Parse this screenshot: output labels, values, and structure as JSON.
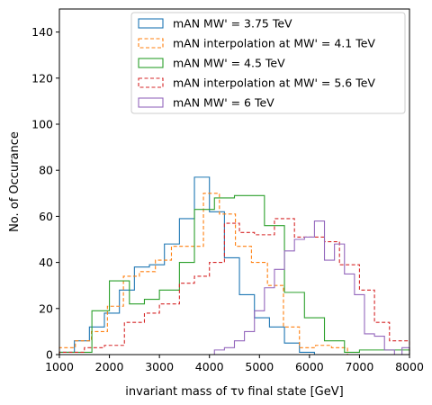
{
  "chart_data": {
    "type": "histogram-step",
    "xlabel": "invariant mass of τν final state [GeV]",
    "ylabel": "No. of Occurance",
    "xlim": [
      1000,
      8000
    ],
    "ylim": [
      0,
      150
    ],
    "xticks": [
      1000,
      2000,
      3000,
      4000,
      5000,
      6000,
      7000,
      8000
    ],
    "yticks": [
      0,
      20,
      40,
      60,
      80,
      100,
      120,
      140
    ],
    "grid": false,
    "legend_position": "top-right",
    "series": [
      {
        "name": "mAN MW' = 3.75 TeV",
        "color": "#1f77b4",
        "dashed": false,
        "edges": [
          1000,
          1300,
          1600,
          1900,
          2200,
          2500,
          2800,
          3100,
          3400,
          3700,
          4000,
          4300,
          4600,
          4900,
          5200,
          5500,
          5800,
          6100
        ],
        "counts": [
          1,
          6,
          12,
          18,
          28,
          38,
          39,
          48,
          59,
          77,
          62,
          42,
          26,
          16,
          12,
          5,
          1
        ]
      },
      {
        "name": "mAN interpolation at MW' = 4.1 TeV",
        "color": "#ff7f0e",
        "dashed": true,
        "edges": [
          1000,
          1320,
          1640,
          1960,
          2280,
          2600,
          2920,
          3240,
          3560,
          3880,
          4200,
          4520,
          4840,
          5160,
          5480,
          5800,
          6120,
          6440,
          6760
        ],
        "counts": [
          3,
          6,
          10,
          21,
          34,
          36,
          41,
          47,
          47,
          70,
          61,
          47,
          40,
          30,
          12,
          3,
          4,
          3
        ]
      },
      {
        "name": "mAN MW' = 4.5 TeV",
        "color": "#2ca02c",
        "dashed": false,
        "edges": [
          1000,
          1650,
          2000,
          2400,
          2700,
          3000,
          3400,
          3700,
          4100,
          4500,
          5100,
          5500,
          5900,
          6300,
          6700,
          7000,
          7300,
          7700,
          8000
        ],
        "counts": [
          1,
          19,
          32,
          22,
          24,
          28,
          40,
          63,
          68,
          69,
          56,
          27,
          16,
          6,
          1,
          2,
          2,
          2
        ]
      },
      {
        "name": "mAN interpolation at MW' = 5.6 TeV",
        "color": "#d62728",
        "dashed": true,
        "edges": [
          1000,
          1500,
          1900,
          2300,
          2700,
          3000,
          3400,
          3700,
          4000,
          4300,
          4600,
          4900,
          5300,
          5700,
          6000,
          6300,
          6600,
          7000,
          7300,
          7600,
          8000
        ],
        "counts": [
          1,
          3,
          4,
          14,
          18,
          22,
          31,
          34,
          40,
          57,
          53,
          52,
          59,
          51,
          51,
          49,
          39,
          28,
          14,
          6
        ]
      },
      {
        "name": "mAN MW' = 6 TeV",
        "color": "#9467bd",
        "dashed": false,
        "edges": [
          4100,
          4300,
          4500,
          4700,
          4900,
          5100,
          5300,
          5500,
          5700,
          5900,
          6100,
          6300,
          6500,
          6700,
          6900,
          7100,
          7300,
          7500,
          7700,
          7850,
          8000
        ],
        "counts": [
          2,
          3,
          6,
          10,
          19,
          29,
          37,
          45,
          50,
          51,
          58,
          41,
          48,
          35,
          26,
          9,
          8,
          2,
          0,
          3
        ]
      }
    ]
  }
}
